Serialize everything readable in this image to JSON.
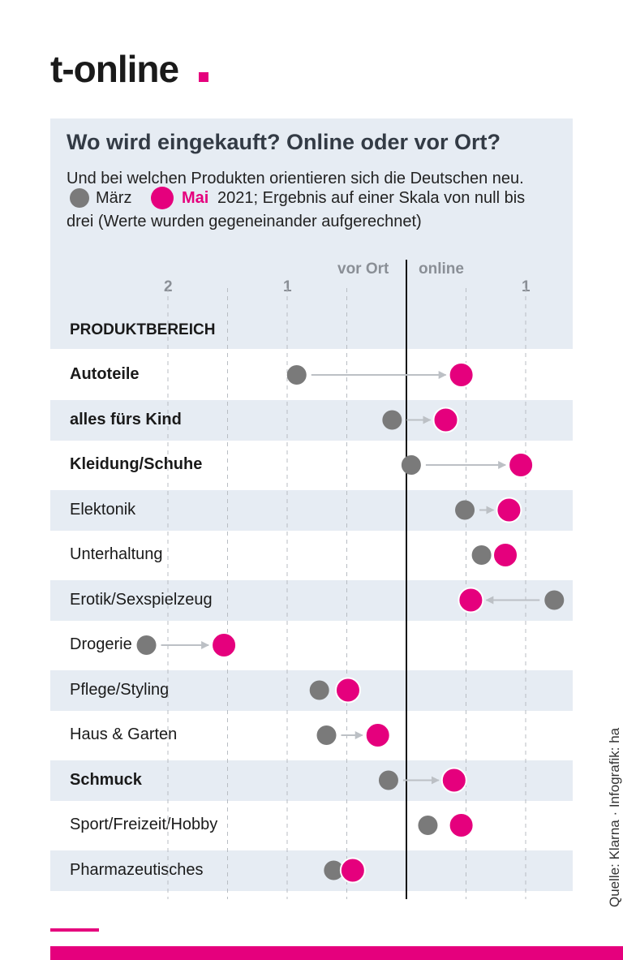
{
  "brand": {
    "logo_text": "t-online",
    "accent_color": "#e5007d"
  },
  "header": {
    "title": "Wo wird eingekauft? Online oder vor Ort?",
    "subtitle": "Und bei welchen Produkten orientieren sich die Deutschen neu.",
    "legend_march": "März",
    "legend_may": "Mai",
    "legend_suffix_line1": "2021; Ergebnis auf einer Skala von null bis",
    "legend_suffix_line2": "drei (Werte wurden gegeneinander aufgerechnet)"
  },
  "chart_data": {
    "type": "dumbbell",
    "axis_left_label": "vor Ort",
    "axis_right_label": "online",
    "tick_labels": [
      {
        "value": -2,
        "label": "2"
      },
      {
        "value": -1,
        "label": "1"
      },
      {
        "value": 1,
        "label": "1"
      }
    ],
    "xlim": [
      -2.5,
      1.3
    ],
    "header_label": "PRODUKTBEREICH",
    "series": [
      {
        "name": "März",
        "color": "#7a7a7a"
      },
      {
        "name": "Mai",
        "color": "#e5007d"
      }
    ],
    "categories": [
      {
        "label": "Autoteile",
        "bold": true,
        "march": -0.92,
        "may": 0.46
      },
      {
        "label": "alles fürs Kind",
        "bold": true,
        "march": -0.12,
        "may": 0.33
      },
      {
        "label": "Kleidung/Schuhe",
        "bold": true,
        "march": 0.04,
        "may": 0.96
      },
      {
        "label": "Elektonik",
        "bold": false,
        "march": 0.49,
        "may": 0.86
      },
      {
        "label": "Unterhaltung",
        "bold": false,
        "march": 0.63,
        "may": 0.83
      },
      {
        "label": "Erotik/Sexspielzeug",
        "bold": false,
        "march": 1.24,
        "may": 0.54
      },
      {
        "label": "Drogerie",
        "bold": false,
        "march": -2.18,
        "may": -1.53
      },
      {
        "label": "Pflege/Styling",
        "bold": false,
        "march": -0.73,
        "may": -0.49
      },
      {
        "label": "Haus & Garten",
        "bold": false,
        "march": -0.67,
        "may": -0.24
      },
      {
        "label": "Schmuck",
        "bold": true,
        "march": -0.15,
        "may": 0.4
      },
      {
        "label": "Sport/Freizeit/Hobby",
        "bold": false,
        "march": 0.18,
        "may": 0.46
      },
      {
        "label": "Pharmazeutisches",
        "bold": false,
        "march": -0.61,
        "may": -0.45
      }
    ]
  },
  "footer": {
    "source": "Quelle: Klarna · Infografik: ha"
  }
}
